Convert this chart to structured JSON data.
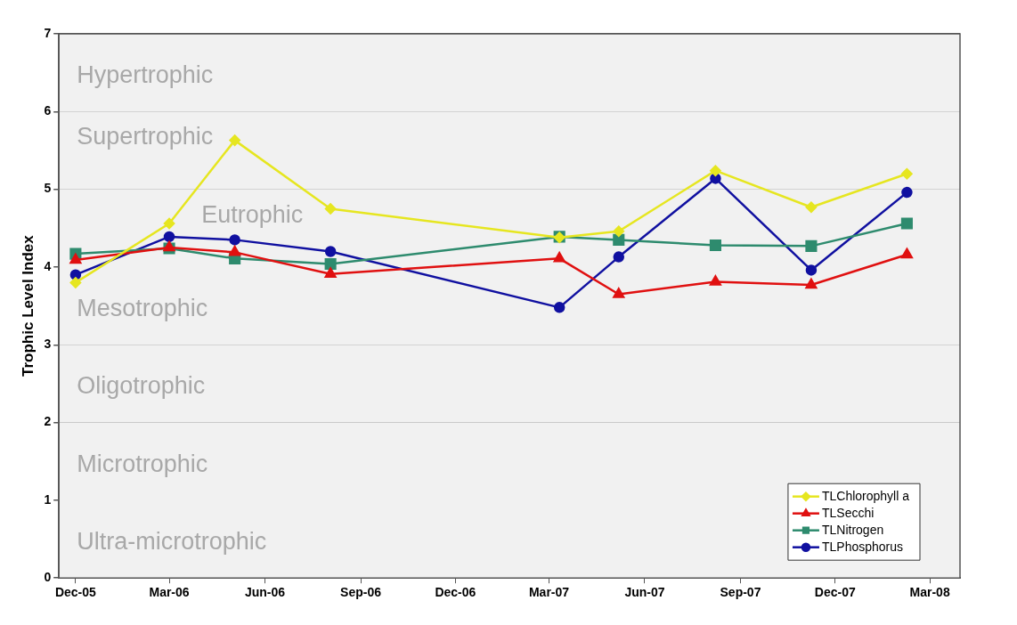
{
  "chart_data": {
    "type": "line",
    "ylabel": "Trophic Level Index",
    "x": [
      "2005-12-01",
      "2006-03-01",
      "2006-05-03",
      "2006-08-03",
      "2007-03-11",
      "2007-05-07",
      "2007-08-08",
      "2007-11-08",
      "2008-02-08"
    ],
    "series": [
      {
        "name": "TLChlorophyll a",
        "color": "#e6e620",
        "marker": "diamond",
        "values": [
          3.8,
          4.56,
          5.63,
          4.75,
          4.38,
          4.46,
          5.24,
          4.77,
          5.2
        ]
      },
      {
        "name": "TLSecchi",
        "color": "#e01010",
        "marker": "triangle",
        "values": [
          4.09,
          4.25,
          4.19,
          3.91,
          4.11,
          3.65,
          3.81,
          3.77,
          4.16
        ]
      },
      {
        "name": "TLNitrogen",
        "color": "#2e8b6e",
        "marker": "square",
        "values": [
          4.17,
          4.24,
          4.11,
          4.04,
          4.39,
          4.35,
          4.28,
          4.27,
          4.56
        ]
      },
      {
        "name": "TLPhosphorus",
        "color": "#1010a0",
        "marker": "circle",
        "values": [
          3.9,
          4.39,
          4.35,
          4.2,
          3.48,
          4.13,
          5.14,
          3.96,
          4.96
        ]
      }
    ],
    "xlim": [
      "2005-11-15",
      "2008-03-30"
    ],
    "xticks": [
      {
        "value": "2005-12-01",
        "label": "Dec-05"
      },
      {
        "value": "2006-03-01",
        "label": "Mar-06"
      },
      {
        "value": "2006-06-01",
        "label": "Jun-06"
      },
      {
        "value": "2006-09-01",
        "label": "Sep-06"
      },
      {
        "value": "2006-12-01",
        "label": "Dec-06"
      },
      {
        "value": "2007-03-01",
        "label": "Mar-07"
      },
      {
        "value": "2007-06-01",
        "label": "Jun-07"
      },
      {
        "value": "2007-09-01",
        "label": "Sep-07"
      },
      {
        "value": "2007-12-01",
        "label": "Dec-07"
      },
      {
        "value": "2008-03-01",
        "label": "Mar-08"
      }
    ],
    "ylim": [
      0,
      7
    ],
    "yticks": [
      0,
      1,
      2,
      3,
      4,
      5,
      6,
      7
    ],
    "bands": [
      {
        "axis": "y",
        "from": 6,
        "to": 7,
        "label": "Hypertrophic",
        "color": "#f1f1f1"
      },
      {
        "axis": "y",
        "from": 5,
        "to": 6,
        "label": "Supertrophic",
        "color": "#f1f1f1"
      },
      {
        "axis": "y",
        "from": 4,
        "to": 5,
        "label": "Eutrophic",
        "color": "#f1f1f1"
      },
      {
        "axis": "y",
        "from": 3,
        "to": 4,
        "label": "Mesotrophic",
        "color": "#f1f1f1"
      },
      {
        "axis": "y",
        "from": 2,
        "to": 3,
        "label": "Oligotrophic",
        "color": "#f1f1f1"
      },
      {
        "axis": "y",
        "from": 1,
        "to": 2,
        "label": "Microtrophic",
        "color": "#f1f1f1"
      },
      {
        "axis": "y",
        "from": 0,
        "to": 1,
        "label": "Ultra-microtrophic",
        "color": "#f1f1f1"
      }
    ],
    "grid": "y",
    "legend": "bottom right",
    "line_style": "solid"
  }
}
